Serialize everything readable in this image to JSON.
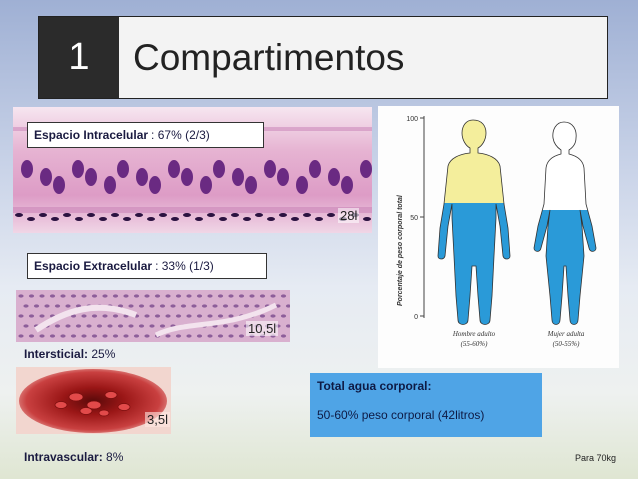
{
  "slide": {
    "number": "1",
    "title": "Compartimentos"
  },
  "intracelular": {
    "label_bold": "Espacio Intracelular",
    "label_rest": ": 67% (2/3)",
    "volume": "28l"
  },
  "extracelular": {
    "label_bold": "Espacio Extracelular",
    "label_rest": ": 33% (1/3)"
  },
  "intersticial": {
    "caption_bold": "Intersticial:",
    "caption_rest": " 25%",
    "volume": "10,5l"
  },
  "intravascular": {
    "caption_bold": "Intravascular:",
    "caption_rest": " 8%",
    "volume": "3,5l"
  },
  "info": {
    "title": "Total agua corporal:",
    "body": "50-60% peso corporal (42litros)"
  },
  "footnote": "Para 70kg",
  "figure": {
    "y_axis_label": "Porcentaje de peso corporal total",
    "ticks": [
      "100",
      "50",
      "0"
    ],
    "male_label": "Hombre adulto",
    "male_range": "(55-60%)",
    "female_label": "Mujer adulta",
    "female_range": "(50-55%)",
    "colors": {
      "water": "#2a9ad8",
      "upper": "#f4ee9c"
    }
  }
}
